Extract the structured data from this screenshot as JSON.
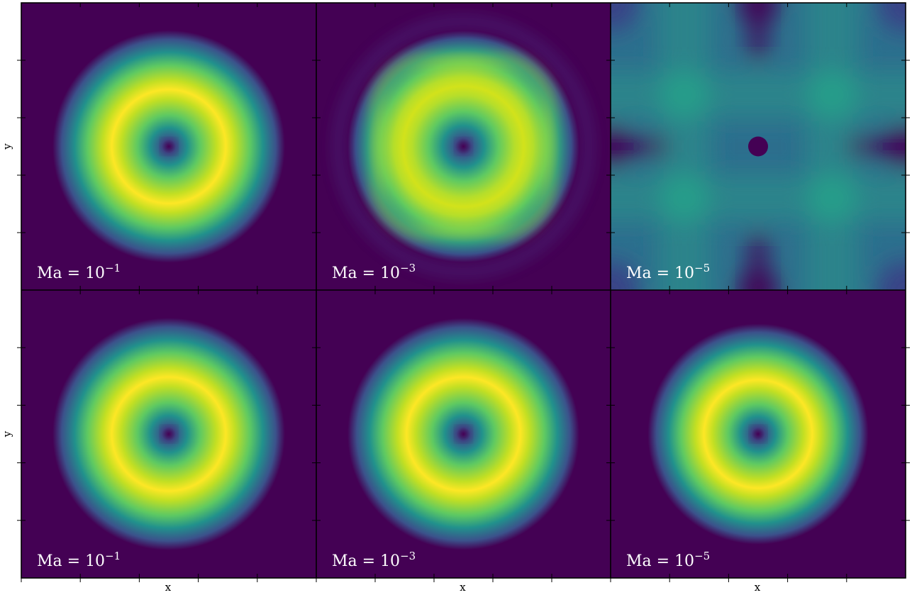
{
  "chart_data": {
    "type": "heatmap",
    "layout": {
      "rows": 2,
      "cols": 3,
      "shared_axes": true
    },
    "xlabel": "x",
    "ylabel": "y",
    "tick_labels": "none",
    "colormap": "viridis",
    "colors": {
      "low": "#440154",
      "mid": "#21918c",
      "high": "#fde725"
    },
    "panels": [
      {
        "row": 0,
        "col": 0,
        "label": "Ma = ",
        "exponent": "−1",
        "pattern": "ring",
        "ring_radius": 0.4,
        "ring_width": 0.19,
        "peak": 1.0
      },
      {
        "row": 0,
        "col": 1,
        "label": "Ma = ",
        "exponent": "−3",
        "pattern": "rounded-square-ring",
        "ring_radius": 0.4,
        "ring_width": 0.2,
        "peak": 0.93
      },
      {
        "row": 0,
        "col": 2,
        "label": "Ma = ",
        "exponent": "−5",
        "pattern": "cross-lattice",
        "peak": 0.5
      },
      {
        "row": 1,
        "col": 0,
        "label": "Ma = ",
        "exponent": "−1",
        "pattern": "ring",
        "ring_radius": 0.4,
        "ring_width": 0.19,
        "peak": 1.0
      },
      {
        "row": 1,
        "col": 1,
        "label": "Ma = ",
        "exponent": "−3",
        "pattern": "ring",
        "ring_radius": 0.4,
        "ring_width": 0.19,
        "peak": 1.0
      },
      {
        "row": 1,
        "col": 2,
        "label": "Ma = ",
        "exponent": "−5",
        "pattern": "ring",
        "ring_radius": 0.38,
        "ring_width": 0.19,
        "peak": 1.0
      }
    ]
  }
}
